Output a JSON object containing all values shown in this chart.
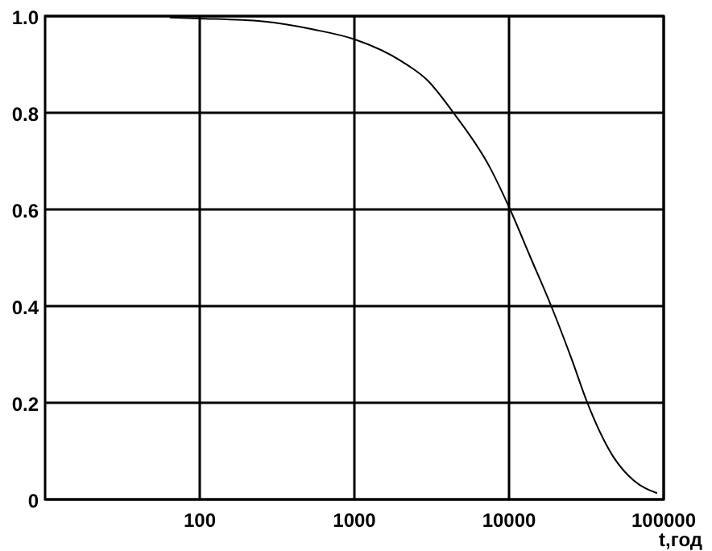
{
  "chart_data": {
    "type": "line",
    "xlabel": "t,год",
    "x": [
      64,
      100,
      255,
      550,
      1000,
      2030,
      2970,
      4370,
      7460,
      10160,
      13800,
      18750,
      25500,
      32100,
      47100,
      64100,
      90600
    ],
    "series": [
      {
        "color": "#000000",
        "values": [
          0.997,
          0.995,
          0.989,
          0.972,
          0.952,
          0.906,
          0.867,
          0.8,
          0.689,
          0.6,
          0.5,
          0.4,
          0.289,
          0.2,
          0.089,
          0.039,
          0.013
        ]
      }
    ],
    "log": "x",
    "xlim": [
      10,
      100000
    ],
    "xticks": [
      100,
      1000,
      10000,
      100000
    ],
    "ylim": [
      0,
      1
    ],
    "yticks": [
      {
        "value": 0,
        "label": "0"
      },
      0.2,
      0.4,
      0.6,
      0.8,
      {
        "value": 1,
        "label": "1.0"
      }
    ],
    "grid": true,
    "marker": "none"
  }
}
